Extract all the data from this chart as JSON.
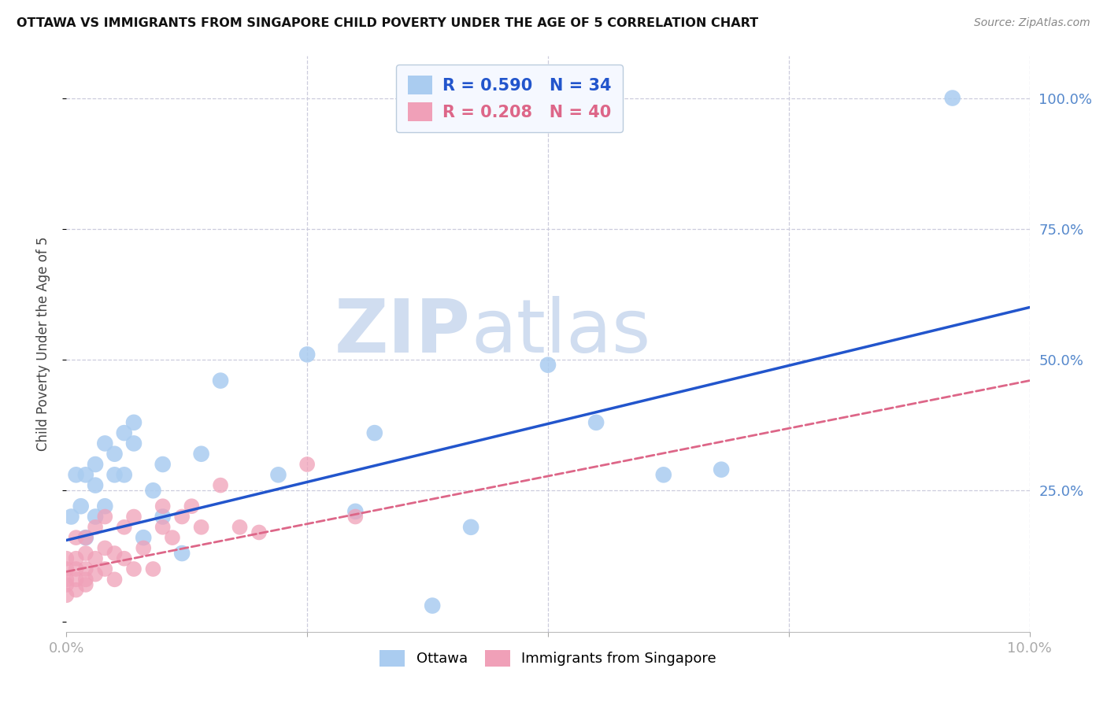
{
  "title": "OTTAWA VS IMMIGRANTS FROM SINGAPORE CHILD POVERTY UNDER THE AGE OF 5 CORRELATION CHART",
  "source": "Source: ZipAtlas.com",
  "ylabel": "Child Poverty Under the Age of 5",
  "xlim": [
    0.0,
    0.1
  ],
  "ylim": [
    -0.02,
    1.08
  ],
  "ottawa_R": 0.59,
  "ottawa_N": 34,
  "singapore_R": 0.208,
  "singapore_N": 40,
  "ottawa_color": "#aaccf0",
  "ottawa_line_color": "#2255cc",
  "singapore_color": "#f0a0b8",
  "singapore_line_color": "#dd6688",
  "background_color": "#ffffff",
  "grid_color": "#ccccdd",
  "watermark_color": "#d0ddf0",
  "ottawa_x": [
    0.0005,
    0.001,
    0.0015,
    0.002,
    0.002,
    0.003,
    0.003,
    0.003,
    0.004,
    0.004,
    0.005,
    0.005,
    0.006,
    0.006,
    0.007,
    0.007,
    0.008,
    0.009,
    0.01,
    0.01,
    0.012,
    0.014,
    0.016,
    0.022,
    0.025,
    0.03,
    0.032,
    0.038,
    0.042,
    0.05,
    0.055,
    0.062,
    0.068,
    0.092
  ],
  "ottawa_y": [
    0.2,
    0.28,
    0.22,
    0.16,
    0.28,
    0.2,
    0.26,
    0.3,
    0.22,
    0.34,
    0.28,
    0.32,
    0.28,
    0.36,
    0.34,
    0.38,
    0.16,
    0.25,
    0.3,
    0.2,
    0.13,
    0.32,
    0.46,
    0.28,
    0.51,
    0.21,
    0.36,
    0.03,
    0.18,
    0.49,
    0.38,
    0.28,
    0.29,
    1.0
  ],
  "singapore_x": [
    0.0,
    0.0,
    0.0,
    0.0,
    0.0,
    0.001,
    0.001,
    0.001,
    0.001,
    0.001,
    0.002,
    0.002,
    0.002,
    0.002,
    0.002,
    0.003,
    0.003,
    0.003,
    0.004,
    0.004,
    0.004,
    0.005,
    0.005,
    0.006,
    0.006,
    0.007,
    0.007,
    0.008,
    0.009,
    0.01,
    0.01,
    0.011,
    0.012,
    0.013,
    0.014,
    0.016,
    0.018,
    0.02,
    0.025,
    0.03
  ],
  "singapore_y": [
    0.05,
    0.07,
    0.08,
    0.1,
    0.12,
    0.06,
    0.08,
    0.1,
    0.12,
    0.16,
    0.07,
    0.08,
    0.1,
    0.13,
    0.16,
    0.09,
    0.12,
    0.18,
    0.1,
    0.14,
    0.2,
    0.08,
    0.13,
    0.12,
    0.18,
    0.1,
    0.2,
    0.14,
    0.1,
    0.18,
    0.22,
    0.16,
    0.2,
    0.22,
    0.18,
    0.26,
    0.18,
    0.17,
    0.3,
    0.2
  ],
  "ottawa_line_x": [
    0.0,
    0.1
  ],
  "ottawa_line_y": [
    0.155,
    0.6
  ],
  "singapore_line_x": [
    0.0,
    0.1
  ],
  "singapore_line_y": [
    0.095,
    0.46
  ]
}
